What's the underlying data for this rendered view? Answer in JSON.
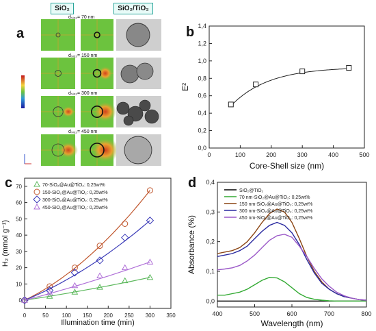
{
  "panel_a": {
    "letter": "a",
    "header_left": "SiO₂",
    "header_right": "SiO₂/TiO₂",
    "rows": [
      {
        "label": "dₛᵢₒ₂= 70 nm",
        "intensity": 0.0
      },
      {
        "label": "dₛᵢₒ₂= 150 nm",
        "intensity": 0.25
      },
      {
        "label": "dₛᵢₒ₂= 300 nm",
        "intensity": 0.7
      },
      {
        "label": "dₛᵢₒ₂= 450 nm",
        "intensity": 1.0
      }
    ]
  },
  "panel_b": {
    "letter": "b",
    "chart_data": {
      "type": "scatter",
      "x": [
        70,
        150,
        300,
        450
      ],
      "y": [
        0.5,
        0.73,
        0.88,
        0.92
      ],
      "xlabel": "Core-Shell size (nm)",
      "ylabel": "E²",
      "xlim": [
        0,
        500
      ],
      "ylim": [
        0,
        1.4
      ],
      "xticks": [
        "0",
        "100",
        "200",
        "300",
        "400",
        "500"
      ],
      "yticks": [
        "0,0",
        "0,2",
        "0,4",
        "0,6",
        "0,8",
        "1,0",
        "1,2",
        "1,4"
      ],
      "fit_curve": true
    }
  },
  "panel_c": {
    "letter": "c",
    "chart_data": {
      "type": "scatter",
      "x": [
        0,
        60,
        120,
        180,
        240,
        300
      ],
      "series": [
        {
          "name": "70-SiO₂@Au@TiO₂: 0,25wt%",
          "values": [
            0,
            2.5,
            5,
            8,
            12,
            14
          ],
          "color": "#5cb85c",
          "marker": "triangle"
        },
        {
          "name": "150-SiO₂@Au@TiO₂: 0,25wt%",
          "values": [
            0,
            8.5,
            20,
            33.5,
            47,
            67.5
          ],
          "color": "#c0572e",
          "marker": "circle"
        },
        {
          "name": "300-SiO₂@Au@TiO₂: 0,25wt%",
          "values": [
            0,
            6,
            17,
            24.5,
            38.5,
            49
          ],
          "color": "#3b3bb8",
          "marker": "diamond"
        },
        {
          "name": "450-SiO₂@Au@TiO₂: 0,25wt%",
          "values": [
            0,
            4.5,
            9,
            15,
            20,
            23.5
          ],
          "color": "#b070d8",
          "marker": "triangle-up"
        }
      ],
      "xlabel": "Illumination time (min)",
      "ylabel": "H₂ (mmol g⁻¹)",
      "xlim": [
        0,
        350
      ],
      "ylim": [
        -5,
        75
      ],
      "xticks": [
        "0",
        "50",
        "100",
        "150",
        "200",
        "250",
        "300",
        "350"
      ],
      "yticks": [
        "0",
        "10",
        "20",
        "30",
        "40",
        "50",
        "60",
        "70"
      ]
    }
  },
  "panel_d": {
    "letter": "d",
    "chart_data": {
      "type": "line",
      "x": [
        400,
        420,
        440,
        460,
        480,
        500,
        520,
        540,
        560,
        580,
        600,
        620,
        640,
        660,
        680,
        700,
        720,
        740,
        760,
        780,
        800
      ],
      "series": [
        {
          "name": "SiO₂@TiO₂",
          "values": [
            0,
            0,
            0,
            0,
            0,
            0,
            0,
            0,
            0,
            0,
            0,
            0,
            0,
            0,
            0,
            0,
            0,
            0,
            0,
            0,
            0
          ],
          "color": "#000000"
        },
        {
          "name": "70 nm-SiO₂@Au@TiO₂: 0,25wt%",
          "values": [
            0.02,
            0.02,
            0.025,
            0.03,
            0.04,
            0.055,
            0.07,
            0.08,
            0.078,
            0.065,
            0.045,
            0.025,
            0.012,
            0.006,
            0.003,
            0.001,
            0,
            0,
            0,
            0,
            0
          ],
          "color": "#33aa33"
        },
        {
          "name": "150 nm-SiO₂@Au@TiO₂: 0,25wt%",
          "values": [
            0.16,
            0.165,
            0.17,
            0.18,
            0.2,
            0.23,
            0.265,
            0.295,
            0.31,
            0.3,
            0.265,
            0.21,
            0.15,
            0.1,
            0.065,
            0.04,
            0.025,
            0.015,
            0.01,
            0.005,
            0.003
          ],
          "color": "#8b4513"
        },
        {
          "name": "300 nm-SiO₂@Au@TiO₂: 0,25wt%",
          "values": [
            0.15,
            0.155,
            0.16,
            0.17,
            0.185,
            0.21,
            0.235,
            0.255,
            0.265,
            0.255,
            0.23,
            0.19,
            0.14,
            0.095,
            0.06,
            0.04,
            0.025,
            0.015,
            0.01,
            0.005,
            0.003
          ],
          "color": "#2a2aa0"
        },
        {
          "name": "450 nm-SiO₂@Au@TiO₂: 0,25wt%",
          "values": [
            0.105,
            0.108,
            0.112,
            0.12,
            0.135,
            0.155,
            0.18,
            0.205,
            0.22,
            0.225,
            0.215,
            0.185,
            0.15,
            0.11,
            0.075,
            0.05,
            0.03,
            0.018,
            0.01,
            0.005,
            0.003
          ],
          "color": "#9b59c8"
        }
      ],
      "xlabel": "Wavelength (nm)",
      "ylabel": "Absorbance (%)",
      "xlim": [
        400,
        800
      ],
      "ylim": [
        -0.02,
        0.4
      ],
      "xticks": [
        "400",
        "500",
        "600",
        "700",
        "800"
      ],
      "yticks": [
        "0,0",
        "0,1",
        "0,2",
        "0,3",
        "0,4"
      ]
    }
  },
  "colors": {
    "header_border": "#2aa59a",
    "field_bg": "#6cc33e",
    "field_hot": "#d63a1a"
  }
}
